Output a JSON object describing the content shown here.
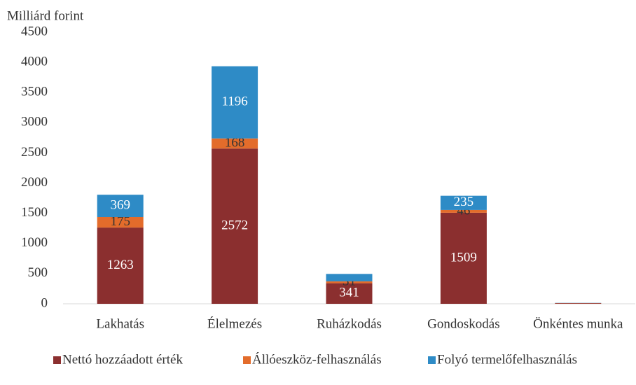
{
  "chart_data": {
    "type": "stacked_bar",
    "y_label": "Milliárd forint",
    "categories": [
      "Lakhatás",
      "Élelmezés",
      "Ruházkodás",
      "Gondoskodás",
      "Önkéntes munka"
    ],
    "series": [
      {
        "name": "Nettó hozzáadott érték",
        "color": "#8b2f2f",
        "values": [
          1263,
          2572,
          341,
          1509,
          10
        ],
        "value_labels": [
          "1263",
          "2572",
          "341",
          "1509",
          null
        ],
        "label_color": "#ffffff"
      },
      {
        "name": "Állóeszköz-felhasználás",
        "color": "#e36c2b",
        "values": [
          175,
          168,
          31,
          46,
          2
        ],
        "value_labels": [
          "175",
          "168",
          "31",
          "46",
          null
        ],
        "label_color": "#333333"
      },
      {
        "name": "Folyó termelőfelhasználás",
        "color": "#2e8bc6",
        "values": [
          369,
          1196,
          123,
          235,
          3
        ],
        "value_labels": [
          "369",
          "1196",
          null,
          "235",
          null
        ],
        "label_color": "#ffffff"
      }
    ],
    "ylim": [
      0,
      4500
    ],
    "yticks": [
      0,
      500,
      1000,
      1500,
      2000,
      2500,
      3000,
      3500,
      4000,
      4500
    ],
    "legend": "bottom"
  }
}
